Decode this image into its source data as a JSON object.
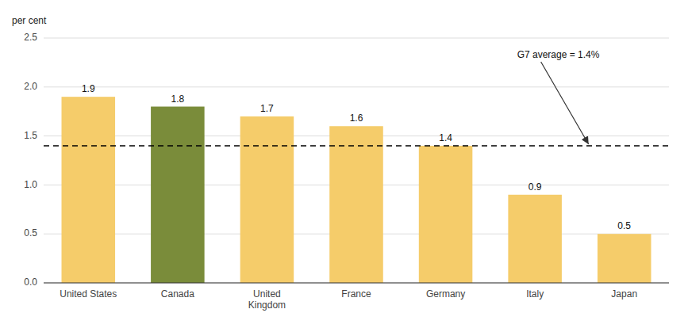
{
  "chart_data": {
    "type": "bar",
    "y_label": "per cent",
    "categories": [
      "United States",
      "Canada",
      "United\nKingdom",
      "France",
      "Germany",
      "Italy",
      "Japan"
    ],
    "values": [
      1.9,
      1.8,
      1.7,
      1.6,
      1.4,
      0.9,
      0.5
    ],
    "colors": [
      "#F5CC6A",
      "#7A8C3A",
      "#F5CC6A",
      "#F5CC6A",
      "#F5CC6A",
      "#F5CC6A",
      "#F5CC6A"
    ],
    "data_labels": true,
    "ylim": [
      0.0,
      2.5
    ],
    "yticks": [
      {
        "value": 0.0,
        "label": "0.0"
      },
      0.5,
      {
        "value": 1.0,
        "label": "1.0"
      },
      1.5,
      {
        "value": 2.0,
        "label": "2.0"
      },
      2.5
    ],
    "grid": true,
    "annotations": [
      {
        "text": "G7 average = 1.4%",
        "y": 1.4
      }
    ]
  }
}
